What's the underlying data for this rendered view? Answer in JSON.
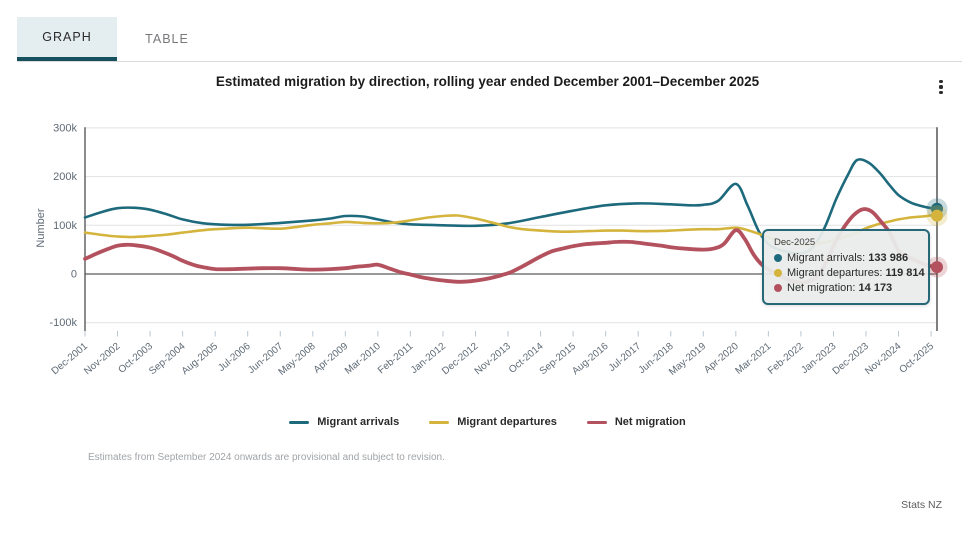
{
  "tabs": {
    "graph": "GRAPH",
    "table": "TABLE"
  },
  "header": {
    "title": "Estimated migration by direction, rolling year ended December 2001–December 2025"
  },
  "colors": {
    "arrivals": "#1e6a7d",
    "departures": "#d4b43c",
    "net": "#b3525e",
    "tab_underline": "#17505f",
    "tab_bg": "#e4edf0",
    "gridline": "#e2e2e2",
    "zero_line": "#999999",
    "axis_line": "#4d4d4d",
    "axis_text": "#5f6b76",
    "tick_mark": "#b9c6d0",
    "crosshair": "#2b2b2b",
    "tooltip_border": "#266878"
  },
  "chart_data": {
    "type": "line",
    "title": "Estimated migration by direction, rolling year ended December 2001–December 2025",
    "xlabel": "",
    "ylabel": "Number",
    "value_unit": "thousands of people",
    "grid": true,
    "legend_position": "bottom",
    "ylim_k": [
      -100,
      300
    ],
    "x_range_months": [
      0,
      288
    ],
    "x_tick_step_months": 11,
    "x_tick_labels": [
      "Dec-2001",
      "Nov-2002",
      "Oct-2003",
      "Sep-2004",
      "Aug-2005",
      "Jul-2006",
      "Jun-2007",
      "May-2008",
      "Apr-2009",
      "Mar-2010",
      "Feb-2011",
      "Jan-2012",
      "Dec-2012",
      "Nov-2013",
      "Oct-2014",
      "Sep-2015",
      "Aug-2016",
      "Jul-2017",
      "Jun-2018",
      "May-2019",
      "Apr-2020",
      "Mar-2021",
      "Feb-2022",
      "Jan-2023",
      "Dec-2023",
      "Nov-2024",
      "Oct-2025"
    ],
    "y_ticks": [
      {
        "label": "300k",
        "value": 300
      },
      {
        "label": "200k",
        "value": 200
      },
      {
        "label": "100k",
        "value": 100
      },
      {
        "label": "0",
        "value": 0
      },
      {
        "label": "-100k",
        "value": -100
      }
    ],
    "hover_month": 288,
    "series": [
      {
        "name": "Migrant arrivals",
        "color": "#1e6a7d",
        "end_label": "133 986",
        "end_value": 133986,
        "points": [
          [
            0,
            116
          ],
          [
            6,
            128
          ],
          [
            11,
            135
          ],
          [
            17,
            136
          ],
          [
            22,
            132
          ],
          [
            28,
            122
          ],
          [
            33,
            112
          ],
          [
            40,
            104
          ],
          [
            48,
            101
          ],
          [
            55,
            101
          ],
          [
            66,
            105
          ],
          [
            77,
            110
          ],
          [
            83,
            114
          ],
          [
            88,
            119
          ],
          [
            94,
            118
          ],
          [
            99,
            112
          ],
          [
            105,
            105
          ],
          [
            110,
            102
          ],
          [
            121,
            100
          ],
          [
            132,
            99
          ],
          [
            143,
            104
          ],
          [
            154,
            117
          ],
          [
            165,
            130
          ],
          [
            176,
            141
          ],
          [
            187,
            145
          ],
          [
            198,
            143
          ],
          [
            204,
            141
          ],
          [
            209,
            142
          ],
          [
            214,
            150
          ],
          [
            220,
            185
          ],
          [
            224,
            140
          ],
          [
            228,
            85
          ],
          [
            232,
            57
          ],
          [
            237,
            46
          ],
          [
            242,
            42
          ],
          [
            246,
            55
          ],
          [
            250,
            95
          ],
          [
            254,
            155
          ],
          [
            258,
            205
          ],
          [
            261,
            234
          ],
          [
            265,
            228
          ],
          [
            269,
            205
          ],
          [
            272,
            182
          ],
          [
            275,
            162
          ],
          [
            279,
            147
          ],
          [
            283,
            139
          ],
          [
            286,
            135
          ],
          [
            288,
            134
          ]
        ]
      },
      {
        "name": "Migrant departures",
        "color": "#d4b43c",
        "end_label": "119 814",
        "end_value": 119814,
        "points": [
          [
            0,
            85
          ],
          [
            6,
            80
          ],
          [
            11,
            77
          ],
          [
            16,
            76
          ],
          [
            22,
            78
          ],
          [
            28,
            81
          ],
          [
            33,
            85
          ],
          [
            40,
            90
          ],
          [
            44,
            92
          ],
          [
            50,
            94
          ],
          [
            55,
            95
          ],
          [
            60,
            94
          ],
          [
            66,
            93
          ],
          [
            72,
            97
          ],
          [
            77,
            101
          ],
          [
            83,
            104
          ],
          [
            88,
            107
          ],
          [
            94,
            105
          ],
          [
            99,
            104
          ],
          [
            105,
            106
          ],
          [
            110,
            110
          ],
          [
            116,
            116
          ],
          [
            121,
            119
          ],
          [
            126,
            120
          ],
          [
            132,
            114
          ],
          [
            138,
            105
          ],
          [
            143,
            97
          ],
          [
            148,
            92
          ],
          [
            154,
            89
          ],
          [
            160,
            87
          ],
          [
            165,
            87
          ],
          [
            170,
            88
          ],
          [
            176,
            89
          ],
          [
            182,
            89
          ],
          [
            187,
            88
          ],
          [
            192,
            88
          ],
          [
            198,
            89
          ],
          [
            204,
            91
          ],
          [
            209,
            92
          ],
          [
            214,
            92
          ],
          [
            220,
            95
          ],
          [
            224,
            90
          ],
          [
            228,
            82
          ],
          [
            232,
            73
          ],
          [
            237,
            64
          ],
          [
            242,
            60
          ],
          [
            246,
            61
          ],
          [
            250,
            65
          ],
          [
            254,
            71
          ],
          [
            258,
            79
          ],
          [
            261,
            85
          ],
          [
            264,
            94
          ],
          [
            268,
            102
          ],
          [
            272,
            108
          ],
          [
            275,
            112
          ],
          [
            279,
            116
          ],
          [
            283,
            118
          ],
          [
            286,
            120
          ],
          [
            288,
            119.8
          ]
        ]
      },
      {
        "name": "Net migration",
        "color": "#b3525e",
        "end_label": "14 173",
        "end_value": 14173,
        "points": [
          [
            0,
            31
          ],
          [
            4,
            42
          ],
          [
            8,
            52
          ],
          [
            11,
            58
          ],
          [
            14,
            60
          ],
          [
            17,
            59
          ],
          [
            22,
            54
          ],
          [
            26,
            46
          ],
          [
            30,
            36
          ],
          [
            33,
            27
          ],
          [
            37,
            18
          ],
          [
            40,
            14
          ],
          [
            44,
            10
          ],
          [
            50,
            10
          ],
          [
            55,
            11
          ],
          [
            60,
            12
          ],
          [
            66,
            12
          ],
          [
            72,
            10
          ],
          [
            77,
            9
          ],
          [
            83,
            10
          ],
          [
            88,
            12
          ],
          [
            92,
            15
          ],
          [
            96,
            17
          ],
          [
            99,
            19
          ],
          [
            103,
            11
          ],
          [
            107,
            3
          ],
          [
            110,
            -1
          ],
          [
            114,
            -7
          ],
          [
            118,
            -11
          ],
          [
            122,
            -14
          ],
          [
            126,
            -16
          ],
          [
            130,
            -15
          ],
          [
            134,
            -12
          ],
          [
            138,
            -7
          ],
          [
            141,
            -2
          ],
          [
            144,
            4
          ],
          [
            148,
            16
          ],
          [
            151,
            26
          ],
          [
            154,
            36
          ],
          [
            158,
            47
          ],
          [
            162,
            53
          ],
          [
            165,
            57
          ],
          [
            169,
            61
          ],
          [
            173,
            63
          ],
          [
            176,
            64
          ],
          [
            180,
            66
          ],
          [
            184,
            66
          ],
          [
            187,
            64
          ],
          [
            191,
            61
          ],
          [
            195,
            58
          ],
          [
            198,
            55
          ],
          [
            203,
            52
          ],
          [
            209,
            50
          ],
          [
            213,
            53
          ],
          [
            216,
            62
          ],
          [
            220,
            90
          ],
          [
            223,
            72
          ],
          [
            226,
            40
          ],
          [
            229,
            18
          ],
          [
            232,
            6
          ],
          [
            235,
            -4
          ],
          [
            238,
            -12
          ],
          [
            242,
            -18
          ],
          [
            245,
            -14
          ],
          [
            248,
            -2
          ],
          [
            251,
            30
          ],
          [
            254,
            70
          ],
          [
            257,
            100
          ],
          [
            260,
            122
          ],
          [
            263,
            133
          ],
          [
            266,
            128
          ],
          [
            269,
            108
          ],
          [
            272,
            85
          ],
          [
            275,
            48
          ],
          [
            278,
            36
          ],
          [
            281,
            27
          ],
          [
            284,
            19
          ],
          [
            286,
            16
          ],
          [
            288,
            14.2
          ]
        ]
      }
    ]
  },
  "tooltip": {
    "date": "Dec-2025",
    "rows": [
      {
        "label": "Migrant arrivals",
        "value": "133 986",
        "color": "#1e6a7d"
      },
      {
        "label": "Migrant departures",
        "value": "119 814",
        "color": "#d4b43c"
      },
      {
        "label": "Net migration",
        "value": "14 173",
        "color": "#b3525e"
      }
    ]
  },
  "legend": {
    "items": [
      {
        "label": "Migrant arrivals",
        "color": "#1e6a7d"
      },
      {
        "label": "Migrant departures",
        "color": "#d4b43c"
      },
      {
        "label": "Net migration",
        "color": "#b3525e"
      }
    ]
  },
  "footnote": "Estimates from September 2024 onwards are provisional and subject to revision.",
  "attribution": "Stats NZ"
}
